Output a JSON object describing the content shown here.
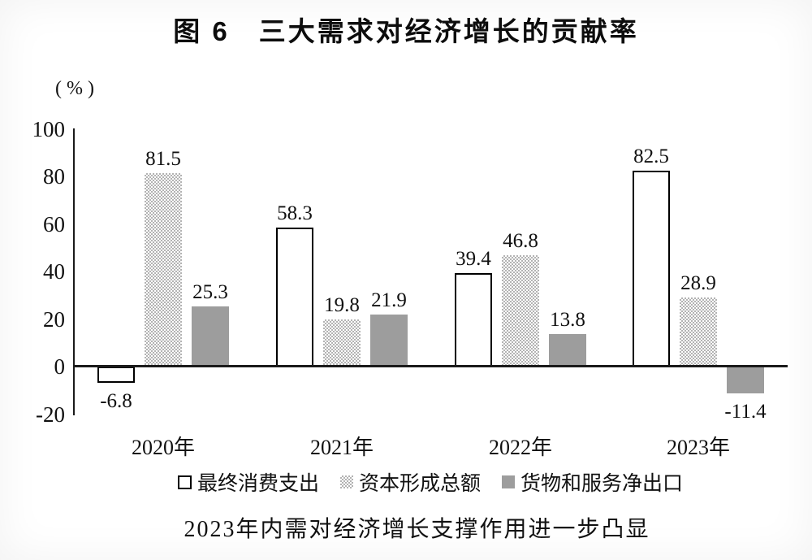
{
  "figure": {
    "title": "图 6　三大需求对经济增长的贡献率",
    "unit_label": "( % )",
    "caption": "2023年内需对经济增长支撑作用进一步凸显"
  },
  "colors": {
    "bar_outline": "#000000",
    "bar_solid_gray": "#9d9d9d",
    "pattern_dot_gray": "#b3b3b3",
    "axis_line": "#1a1a1a",
    "text": "#111111"
  },
  "chart_data": {
    "type": "bar",
    "title": "图 6　三大需求对经济增长的贡献率",
    "xlabel": "",
    "ylabel": "( % )",
    "ylim": [
      -20,
      100
    ],
    "y_ticks": [
      100,
      80,
      60,
      40,
      20,
      0,
      -20
    ],
    "grid": false,
    "value_labels": true,
    "legend_position": "bottom",
    "categories": [
      "2020年",
      "2021年",
      "2022年",
      "2023年"
    ],
    "series": [
      {
        "name": "最终消费支出",
        "style": "white-outline",
        "values": [
          -6.8,
          58.3,
          39.4,
          82.5
        ]
      },
      {
        "name": "资本形成总额",
        "style": "dotted-pattern",
        "values": [
          81.5,
          19.8,
          46.8,
          28.9
        ]
      },
      {
        "name": "货物和服务净出口",
        "style": "solid-gray",
        "values": [
          25.3,
          21.9,
          13.8,
          -11.4
        ]
      }
    ]
  }
}
